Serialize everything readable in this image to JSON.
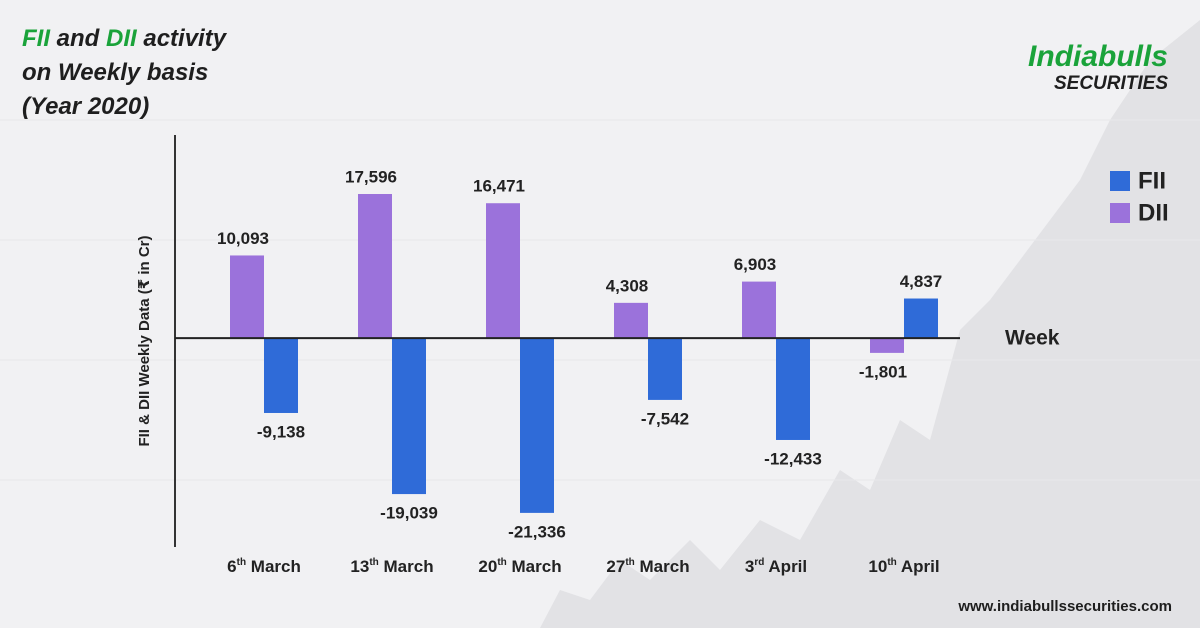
{
  "chart_data": {
    "type": "bar",
    "title_lines": [
      [
        {
          "text": "FII",
          "highlight": true
        },
        {
          "text": " and "
        },
        {
          "text": "DII",
          "highlight": true
        },
        {
          "text": " activity"
        }
      ],
      [
        {
          "text": "on Weekly basis"
        }
      ],
      [
        {
          "text": "(Year 2020)"
        }
      ]
    ],
    "y_label": "FII & DII Weekly Data (₹ in Cr)",
    "x_label": "Week",
    "categories": [
      "6th March",
      "13th March",
      "20th March",
      "27th March",
      "3rd April",
      "10th April"
    ],
    "series": [
      {
        "name": "DII",
        "color": "#9b72db",
        "values": [
          10093,
          17596,
          16471,
          4308,
          6903,
          -1801
        ],
        "value_labels": [
          "10,093",
          "17,596",
          "16,471",
          "4,308",
          "6,903",
          "-1,801"
        ]
      },
      {
        "name": "FII",
        "color": "#2f6bd8",
        "values": [
          -9138,
          -19039,
          -21336,
          -7542,
          -12433,
          4837
        ],
        "value_labels": [
          "-9,138",
          "-19,039",
          "-21,336",
          "-7,542",
          "-12,433",
          "4,837"
        ]
      }
    ],
    "legend_order": [
      1,
      0
    ],
    "ylim": [
      -25500,
      24800
    ],
    "highlight_color": "#1aa33a"
  },
  "brand": {
    "name": "Indiabulls",
    "sub": "SECURITIES"
  },
  "footer_url": "www.indiabullssecurities.com"
}
